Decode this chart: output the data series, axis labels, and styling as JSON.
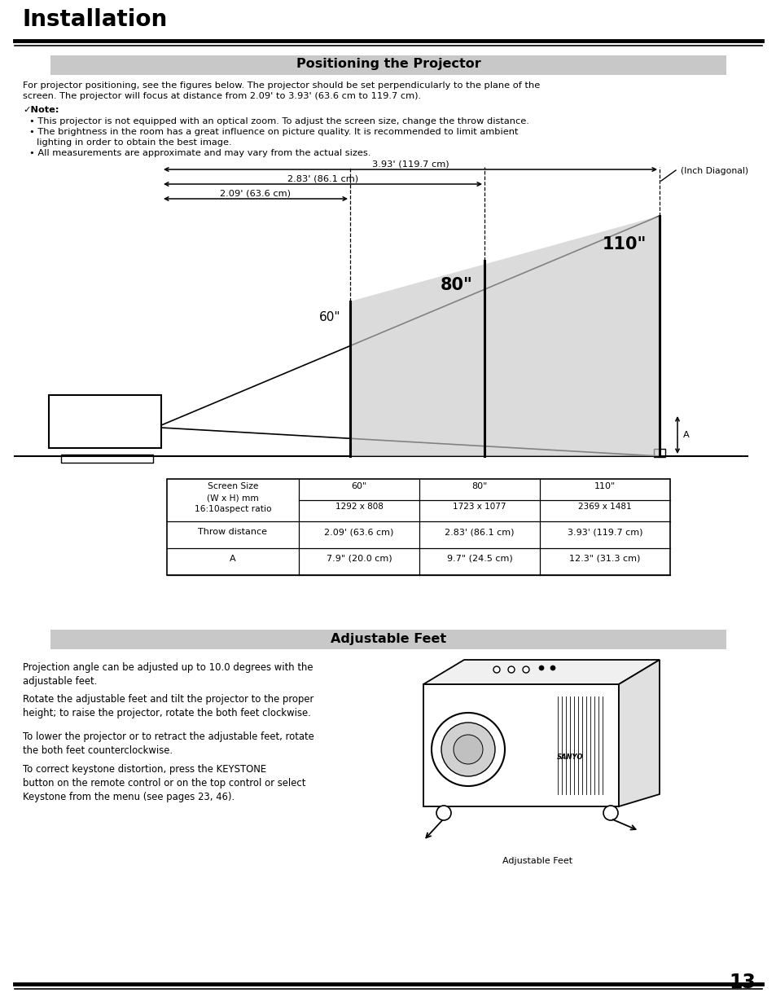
{
  "page_bg": "#ffffff",
  "header_title": "Installation",
  "section1_title": "Positioning the Projector",
  "section1_title_bg": "#c8c8c8",
  "section2_title": "Adjustable Feet",
  "section2_title_bg": "#c8c8c8",
  "intro_line1": "For projector positioning, see the figures below. The projector should be set perpendicularly to the plane of the",
  "intro_line2": "screen. The projector will focus at distance from 2.09' to 3.93' (63.6 cm to 119.7 cm).",
  "note_label": "✓Note:",
  "note_bullet1": "This projector is not equipped with an optical zoom. To adjust the screen size, change the throw distance.",
  "note_bullet2a": "The brightness in the room has a great influence on picture quality. It is recommended to limit ambient",
  "note_bullet2b": "  lighting in order to obtain the best image.",
  "note_bullet3": "All measurements are approximate and may vary from the actual sizes.",
  "diagram_label_393": "3.93' (119.7 cm)",
  "diagram_label_283": "2.83' (86.1 cm)",
  "diagram_label_209": "2.09' (63.6 cm)",
  "diagram_label_inch_diag": "(Inch Diagonal)",
  "diagram_label_60": "60\"",
  "diagram_label_80": "80\"",
  "diagram_label_110": "110\"",
  "diagram_label_A": "A",
  "table_col0_line1": "Screen Size",
  "table_col0_line2": "(W x H) mm",
  "table_col0_line3": "16:10aspect ratio",
  "table_h1": "60\"",
  "table_h2": "80\"",
  "table_h3": "110\"",
  "table_r1c1": "1292 x 808",
  "table_r1c2": "1723 x 1077",
  "table_r1c3": "2369 x 1481",
  "table_r2_label": "Throw distance",
  "table_r2c1": "2.09' (63.6 cm)",
  "table_r2c2": "2.83' (86.1 cm)",
  "table_r2c3": "3.93' (119.7 cm)",
  "table_r3_label": "A",
  "table_r3c1": "7.9\" (20.0 cm)",
  "table_r3c2": "9.7\" (24.5 cm)",
  "table_r3c3": "12.3\" (31.3 cm)",
  "adj_p1": "Projection angle can be adjusted up to 10.0 degrees with the\nadjustable feet.",
  "adj_p2": "Rotate the adjustable feet and tilt the projector to the proper\nheight; to raise the projector, rotate the both feet clockwise.",
  "adj_p3": "To lower the projector or to retract the adjustable feet, rotate\nthe both feet counterclockwise.",
  "adj_p4": "To correct keystone distortion, press the KEYSTONE\nbutton on the remote control or on the top control or select\nKeystone from the menu (see pages 23, 46).",
  "adj_caption": "Adjustable Feet",
  "page_number": "13",
  "text_color": "#000000",
  "gray_fill": "#c8c8c8"
}
